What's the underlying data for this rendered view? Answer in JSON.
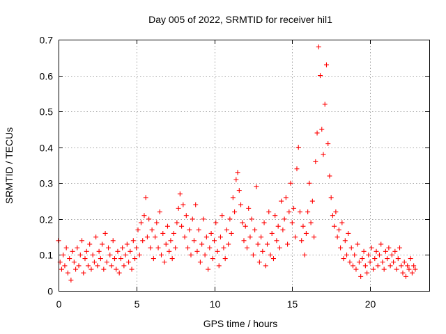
{
  "chart_data": {
    "type": "scatter",
    "title": "Day 005 of 2022, SRMTID for receiver hil1",
    "xlabel": "GPS time / hours",
    "ylabel": "SRMTID / TECUs",
    "xlim": [
      0,
      23.8
    ],
    "ylim": [
      0,
      0.7
    ],
    "xticks": [
      0,
      5,
      10,
      15,
      20
    ],
    "xtick_labels": [
      "0",
      "5",
      "10",
      "15",
      "20"
    ],
    "yticks": [
      0,
      0.1,
      0.2,
      0.3,
      0.4,
      0.5,
      0.6,
      0.7
    ],
    "ytick_labels": [
      "0",
      "0.1",
      "0.2",
      "0.3",
      "0.4",
      "0.5",
      "0.6",
      "0.7"
    ],
    "grid": true,
    "marker": "+",
    "color": "#ff0000",
    "series": [
      {
        "name": "SRMTID",
        "points": [
          [
            0.0,
            0.14
          ],
          [
            0.1,
            0.08
          ],
          [
            0.2,
            0.06
          ],
          [
            0.3,
            0.1
          ],
          [
            0.4,
            0.07
          ],
          [
            0.5,
            0.12
          ],
          [
            0.6,
            0.05
          ],
          [
            0.7,
            0.09
          ],
          [
            0.8,
            0.03
          ],
          [
            0.9,
            0.11
          ],
          [
            1.0,
            0.08
          ],
          [
            1.1,
            0.06
          ],
          [
            1.2,
            0.12
          ],
          [
            1.3,
            0.07
          ],
          [
            1.4,
            0.1
          ],
          [
            1.5,
            0.14
          ],
          [
            1.6,
            0.05
          ],
          [
            1.7,
            0.09
          ],
          [
            1.8,
            0.11
          ],
          [
            1.9,
            0.07
          ],
          [
            2.0,
            0.13
          ],
          [
            2.1,
            0.06
          ],
          [
            2.2,
            0.1
          ],
          [
            2.3,
            0.08
          ],
          [
            2.4,
            0.15
          ],
          [
            2.5,
            0.07
          ],
          [
            2.6,
            0.11
          ],
          [
            2.7,
            0.09
          ],
          [
            2.8,
            0.13
          ],
          [
            2.9,
            0.06
          ],
          [
            3.0,
            0.16
          ],
          [
            3.1,
            0.08
          ],
          [
            3.2,
            0.12
          ],
          [
            3.3,
            0.1
          ],
          [
            3.4,
            0.07
          ],
          [
            3.5,
            0.14
          ],
          [
            3.6,
            0.09
          ],
          [
            3.7,
            0.06
          ],
          [
            3.8,
            0.11
          ],
          [
            3.9,
            0.05
          ],
          [
            4.0,
            0.09
          ],
          [
            4.1,
            0.12
          ],
          [
            4.2,
            0.07
          ],
          [
            4.3,
            0.1
          ],
          [
            4.4,
            0.13
          ],
          [
            4.5,
            0.08
          ],
          [
            4.6,
            0.11
          ],
          [
            4.7,
            0.06
          ],
          [
            4.8,
            0.14
          ],
          [
            4.9,
            0.09
          ],
          [
            5.0,
            0.12
          ],
          [
            5.1,
            0.17
          ],
          [
            5.2,
            0.1
          ],
          [
            5.3,
            0.19
          ],
          [
            5.4,
            0.14
          ],
          [
            5.5,
            0.21
          ],
          [
            5.6,
            0.26
          ],
          [
            5.7,
            0.15
          ],
          [
            5.8,
            0.2
          ],
          [
            5.9,
            0.12
          ],
          [
            6.0,
            0.17
          ],
          [
            6.1,
            0.09
          ],
          [
            6.2,
            0.15
          ],
          [
            6.3,
            0.19
          ],
          [
            6.4,
            0.12
          ],
          [
            6.5,
            0.22
          ],
          [
            6.6,
            0.1
          ],
          [
            6.7,
            0.16
          ],
          [
            6.8,
            0.08
          ],
          [
            6.9,
            0.13
          ],
          [
            7.0,
            0.18
          ],
          [
            7.1,
            0.11
          ],
          [
            7.2,
            0.14
          ],
          [
            7.3,
            0.09
          ],
          [
            7.4,
            0.16
          ],
          [
            7.5,
            0.12
          ],
          [
            7.6,
            0.19
          ],
          [
            7.7,
            0.23
          ],
          [
            7.8,
            0.27
          ],
          [
            7.9,
            0.18
          ],
          [
            8.0,
            0.24
          ],
          [
            8.1,
            0.15
          ],
          [
            8.2,
            0.21
          ],
          [
            8.3,
            0.12
          ],
          [
            8.4,
            0.17
          ],
          [
            8.5,
            0.1
          ],
          [
            8.6,
            0.2
          ],
          [
            8.7,
            0.14
          ],
          [
            8.8,
            0.24
          ],
          [
            8.9,
            0.11
          ],
          [
            9.0,
            0.17
          ],
          [
            9.1,
            0.08
          ],
          [
            9.2,
            0.13
          ],
          [
            9.3,
            0.2
          ],
          [
            9.4,
            0.1
          ],
          [
            9.5,
            0.15
          ],
          [
            9.6,
            0.06
          ],
          [
            9.7,
            0.12
          ],
          [
            9.8,
            0.16
          ],
          [
            9.9,
            0.09
          ],
          [
            10.0,
            0.14
          ],
          [
            10.1,
            0.19
          ],
          [
            10.2,
            0.11
          ],
          [
            10.3,
            0.07
          ],
          [
            10.4,
            0.15
          ],
          [
            10.5,
            0.21
          ],
          [
            10.6,
            0.12
          ],
          [
            10.7,
            0.09
          ],
          [
            10.8,
            0.17
          ],
          [
            10.9,
            0.13
          ],
          [
            11.0,
            0.2
          ],
          [
            11.1,
            0.16
          ],
          [
            11.2,
            0.26
          ],
          [
            11.3,
            0.22
          ],
          [
            11.4,
            0.31
          ],
          [
            11.5,
            0.33
          ],
          [
            11.6,
            0.28
          ],
          [
            11.7,
            0.24
          ],
          [
            11.8,
            0.19
          ],
          [
            11.9,
            0.14
          ],
          [
            12.0,
            0.18
          ],
          [
            12.1,
            0.12
          ],
          [
            12.2,
            0.23
          ],
          [
            12.3,
            0.15
          ],
          [
            12.4,
            0.2
          ],
          [
            12.5,
            0.1
          ],
          [
            12.6,
            0.17
          ],
          [
            12.7,
            0.29
          ],
          [
            12.8,
            0.13
          ],
          [
            12.9,
            0.08
          ],
          [
            13.0,
            0.15
          ],
          [
            13.1,
            0.11
          ],
          [
            13.2,
            0.19
          ],
          [
            13.3,
            0.07
          ],
          [
            13.4,
            0.13
          ],
          [
            13.5,
            0.22
          ],
          [
            13.6,
            0.1
          ],
          [
            13.7,
            0.16
          ],
          [
            13.8,
            0.09
          ],
          [
            13.9,
            0.21
          ],
          [
            14.0,
            0.14
          ],
          [
            14.1,
            0.18
          ],
          [
            14.2,
            0.12
          ],
          [
            14.3,
            0.25
          ],
          [
            14.4,
            0.17
          ],
          [
            14.5,
            0.2
          ],
          [
            14.6,
            0.26
          ],
          [
            14.7,
            0.13
          ],
          [
            14.8,
            0.22
          ],
          [
            14.9,
            0.3
          ],
          [
            15.0,
            0.19
          ],
          [
            15.1,
            0.23
          ],
          [
            15.2,
            0.15
          ],
          [
            15.3,
            0.34
          ],
          [
            15.4,
            0.4
          ],
          [
            15.5,
            0.22
          ],
          [
            15.6,
            0.14
          ],
          [
            15.7,
            0.18
          ],
          [
            15.8,
            0.1
          ],
          [
            15.9,
            0.16
          ],
          [
            16.0,
            0.22
          ],
          [
            16.1,
            0.3
          ],
          [
            16.2,
            0.19
          ],
          [
            16.3,
            0.25
          ],
          [
            16.4,
            0.15
          ],
          [
            16.5,
            0.36
          ],
          [
            16.6,
            0.44
          ],
          [
            16.7,
            0.68
          ],
          [
            16.8,
            0.6
          ],
          [
            16.9,
            0.45
          ],
          [
            17.0,
            0.38
          ],
          [
            17.1,
            0.52
          ],
          [
            17.2,
            0.63
          ],
          [
            17.3,
            0.41
          ],
          [
            17.4,
            0.32
          ],
          [
            17.5,
            0.26
          ],
          [
            17.6,
            0.21
          ],
          [
            17.7,
            0.18
          ],
          [
            17.8,
            0.22
          ],
          [
            17.9,
            0.15
          ],
          [
            18.0,
            0.17
          ],
          [
            18.1,
            0.12
          ],
          [
            18.2,
            0.19
          ],
          [
            18.3,
            0.09
          ],
          [
            18.4,
            0.14
          ],
          [
            18.5,
            0.1
          ],
          [
            18.6,
            0.16
          ],
          [
            18.7,
            0.08
          ],
          [
            18.8,
            0.12
          ],
          [
            18.9,
            0.07
          ],
          [
            19.0,
            0.1
          ],
          [
            19.1,
            0.06
          ],
          [
            19.2,
            0.13
          ],
          [
            19.3,
            0.08
          ],
          [
            19.4,
            0.04
          ],
          [
            19.5,
            0.09
          ],
          [
            19.6,
            0.11
          ],
          [
            19.7,
            0.07
          ],
          [
            19.8,
            0.05
          ],
          [
            19.9,
            0.1
          ],
          [
            20.0,
            0.08
          ],
          [
            20.1,
            0.12
          ],
          [
            20.2,
            0.06
          ],
          [
            20.3,
            0.09
          ],
          [
            20.4,
            0.11
          ],
          [
            20.5,
            0.07
          ],
          [
            20.6,
            0.1
          ],
          [
            20.7,
            0.13
          ],
          [
            20.8,
            0.08
          ],
          [
            20.9,
            0.06
          ],
          [
            21.0,
            0.11
          ],
          [
            21.1,
            0.09
          ],
          [
            21.2,
            0.12
          ],
          [
            21.3,
            0.07
          ],
          [
            21.4,
            0.1
          ],
          [
            21.5,
            0.08
          ],
          [
            21.6,
            0.11
          ],
          [
            21.7,
            0.06
          ],
          [
            21.8,
            0.09
          ],
          [
            21.9,
            0.12
          ],
          [
            22.0,
            0.07
          ],
          [
            22.1,
            0.05
          ],
          [
            22.2,
            0.08
          ],
          [
            22.3,
            0.04
          ],
          [
            22.4,
            0.07
          ],
          [
            22.5,
            0.06
          ],
          [
            22.6,
            0.09
          ],
          [
            22.7,
            0.05
          ],
          [
            22.8,
            0.07
          ],
          [
            22.9,
            0.06
          ]
        ]
      }
    ]
  }
}
